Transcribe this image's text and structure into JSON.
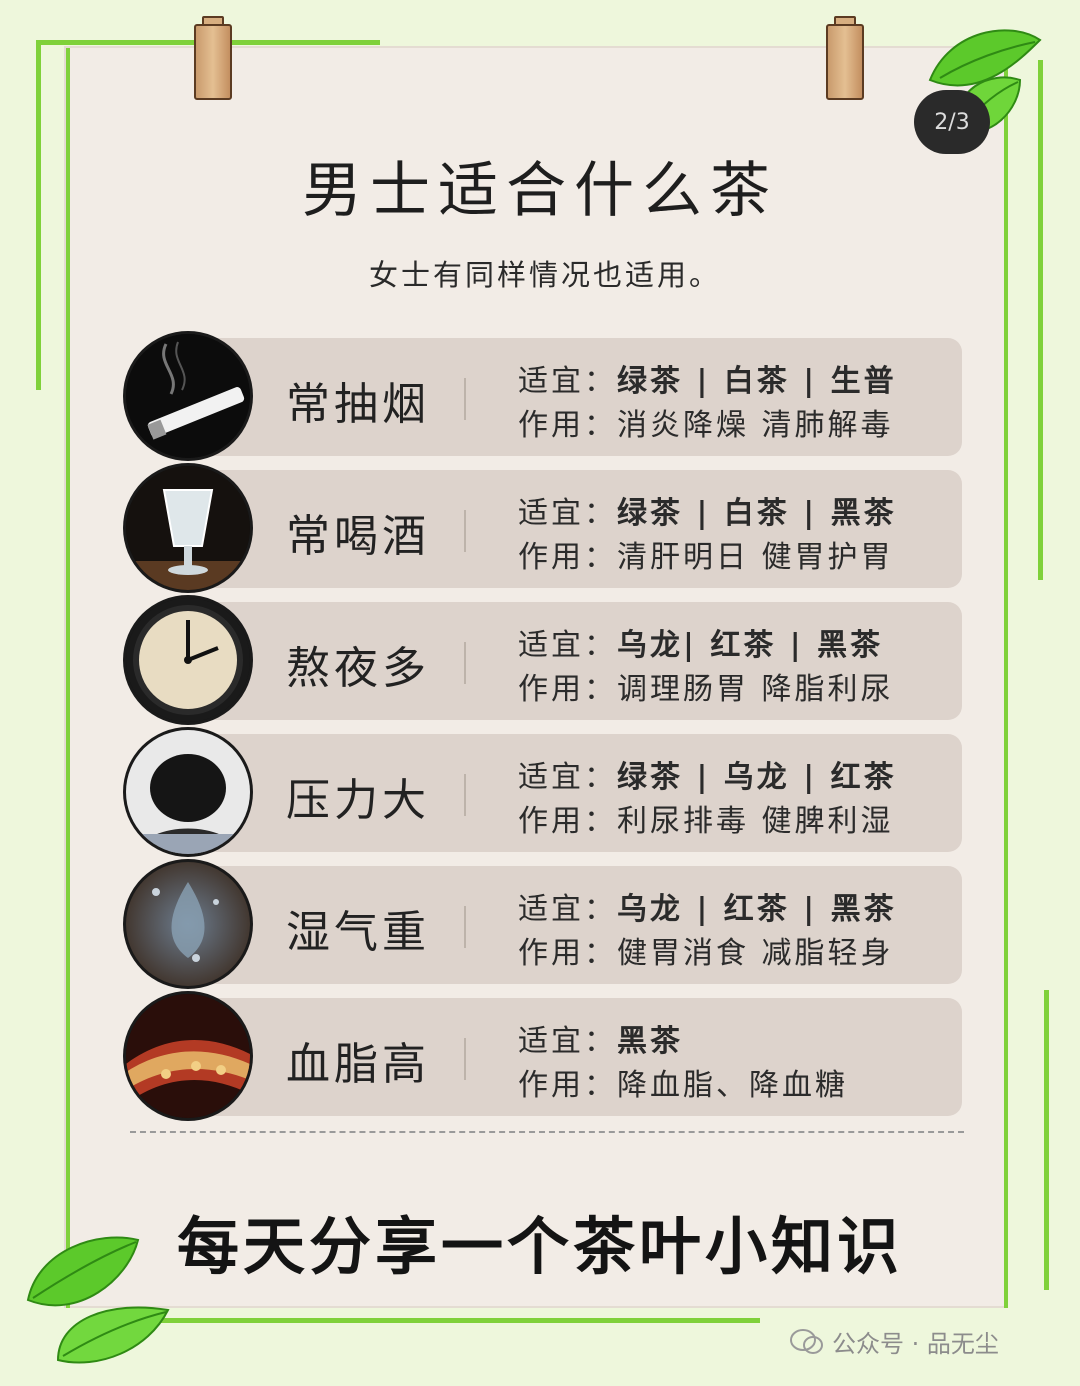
{
  "title": "男士适合什么茶",
  "subtitle": "女士有同样情况也适用。",
  "page_badge": "2/3",
  "suit_label": "适宜：",
  "effect_label": "作用：",
  "rows": [
    {
      "label": "常抽烟",
      "suitable": "绿茶 | 白茶 | 生普",
      "effect": "消炎降燥 清肺解毒",
      "icon": "cigarette-icon"
    },
    {
      "label": "常喝酒",
      "suitable": "绿茶 | 白茶 | 黑茶",
      "effect": "清肝明日 健胃护胃",
      "icon": "liquor-glass-icon"
    },
    {
      "label": "熬夜多",
      "suitable": "乌龙| 红茶 | 黑茶",
      "effect": "调理肠胃 降脂利尿",
      "icon": "clock-icon"
    },
    {
      "label": "压力大",
      "suitable": "绿茶 | 乌龙 | 红茶",
      "effect": "利尿排毒 健脾利湿",
      "icon": "stressed-person-icon"
    },
    {
      "label": "湿气重",
      "suitable": "乌龙 | 红茶 | 黑茶",
      "effect": "健胃消食 减脂轻身",
      "icon": "dampness-icon"
    },
    {
      "label": "血脂高",
      "suitable": "黑茶",
      "effect": "降血脂、降血糖",
      "icon": "blood-vessel-icon"
    }
  ],
  "footer": "每天分享一个茶叶小知识",
  "watermark": "公众号 · 品无尘"
}
